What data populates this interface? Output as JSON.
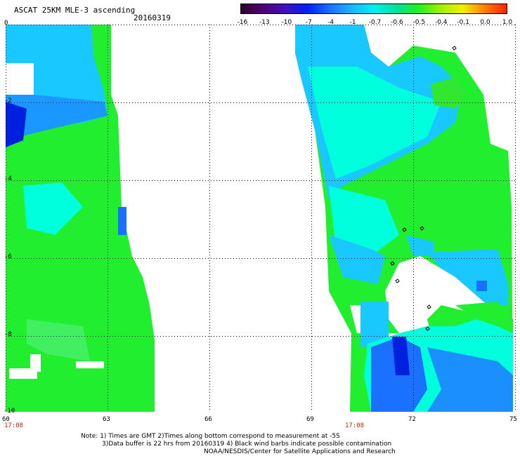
{
  "header": {
    "title": "ASCAT 25KM MLE-3 ascending",
    "date": "20160319"
  },
  "colorbar": {
    "labels": [
      "-16",
      "-13",
      "-10",
      "-7",
      "-4",
      "-1",
      "-0.7",
      "-0.6",
      "-0.5",
      "-0.4",
      "-0.1",
      "0.0",
      "1.0"
    ],
    "colors": [
      "#300030",
      "#500070",
      "#4010c0",
      "#0020f0",
      "#1a70ff",
      "#1ab4ff",
      "#00f0f0",
      "#00e0a0",
      "#20f020",
      "#a0f000",
      "#f0f000",
      "#ff8000",
      "#ff2000"
    ]
  },
  "axes": {
    "x_ticks": [
      "60",
      "63",
      "66",
      "69",
      "72",
      "75"
    ],
    "y_ticks": [
      "0",
      "-2",
      "-4",
      "-6",
      "-8",
      "-10"
    ],
    "time_labels": [
      "17:08",
      "17:08"
    ]
  },
  "notes": {
    "line1": "Note: 1) Times are GMT 2)Times along bottom correspond to measurement at -5S",
    "line2": "3)Data buffer is 22 hrs from 20160319 4) Black wind barbs indicate possible contamination",
    "line3": "NOAA/NESDIS/Center for Satellite Applications and Research"
  },
  "palette": {
    "green": "#22ee30",
    "green_light": "#40f060",
    "cyan": "#00ffdd",
    "sky": "#18c8ff",
    "blue": "#1a70ff",
    "deep_blue": "#0020e0"
  }
}
